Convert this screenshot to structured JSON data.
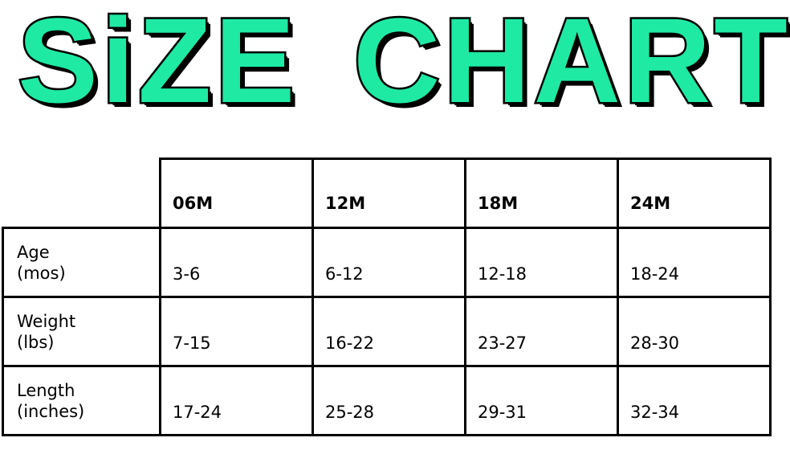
{
  "title": {
    "word1": "SiZE",
    "word2": "CHART",
    "fill_color": "#1eeaa4",
    "outline_color": "#000000"
  },
  "table": {
    "columns": [
      "06M",
      "12M",
      "18M",
      "24M"
    ],
    "rows": [
      {
        "label1": "Age",
        "label2": "(mos)",
        "values": [
          "3-6",
          "6-12",
          "12-18",
          "18-24"
        ]
      },
      {
        "label1": "Weight",
        "label2": "(lbs)",
        "values": [
          "7-15",
          "16-22",
          "23-27",
          "28-30"
        ]
      },
      {
        "label1": "Length",
        "label2": "(inches)",
        "values": [
          "17-24",
          "25-28",
          "29-31",
          "32-34"
        ]
      }
    ]
  }
}
